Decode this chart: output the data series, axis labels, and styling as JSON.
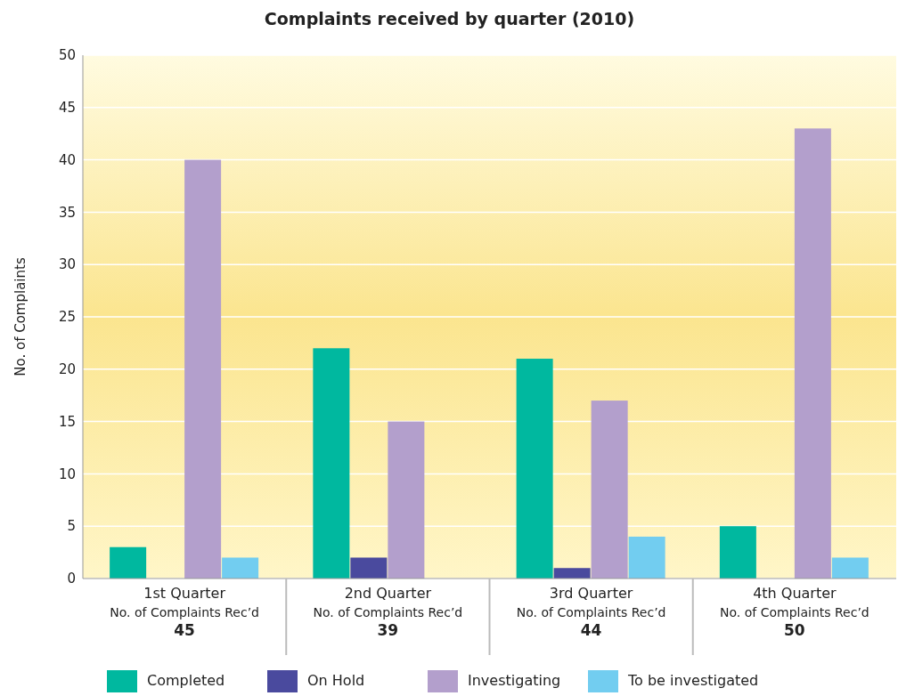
{
  "chart_data": {
    "type": "bar",
    "title": "Complaints received by quarter (2010)",
    "ylabel": "No. of Complaints",
    "categories": [
      "1st Quarter\nNo. of Complaints Rec’d\n45",
      "2nd Quarter\nNo. of Complaints Rec’d\n39",
      "3rd Quarter\nNo. of Complaints Rec’d\n44",
      "4th Quarter\nNo. of Complaints Rec’d\n50"
    ],
    "series": [
      {
        "name": "Completed",
        "color": "#00b89f",
        "values": [
          3,
          22,
          21,
          5
        ]
      },
      {
        "name": "On Hold",
        "color": "#4a4a9e",
        "values": [
          0,
          2,
          1,
          0
        ]
      },
      {
        "name": "Investigating",
        "color": "#b39fcc",
        "values": [
          40,
          15,
          17,
          43
        ]
      },
      {
        "name": "To be investigated",
        "color": "#72cdf0",
        "values": [
          2,
          0,
          4,
          2
        ]
      }
    ],
    "ylim": [
      0,
      50
    ],
    "yticks": [
      0,
      5,
      10,
      15,
      20,
      25,
      30,
      35,
      40,
      45,
      50
    ],
    "grid": "y",
    "legend": "bottom"
  }
}
